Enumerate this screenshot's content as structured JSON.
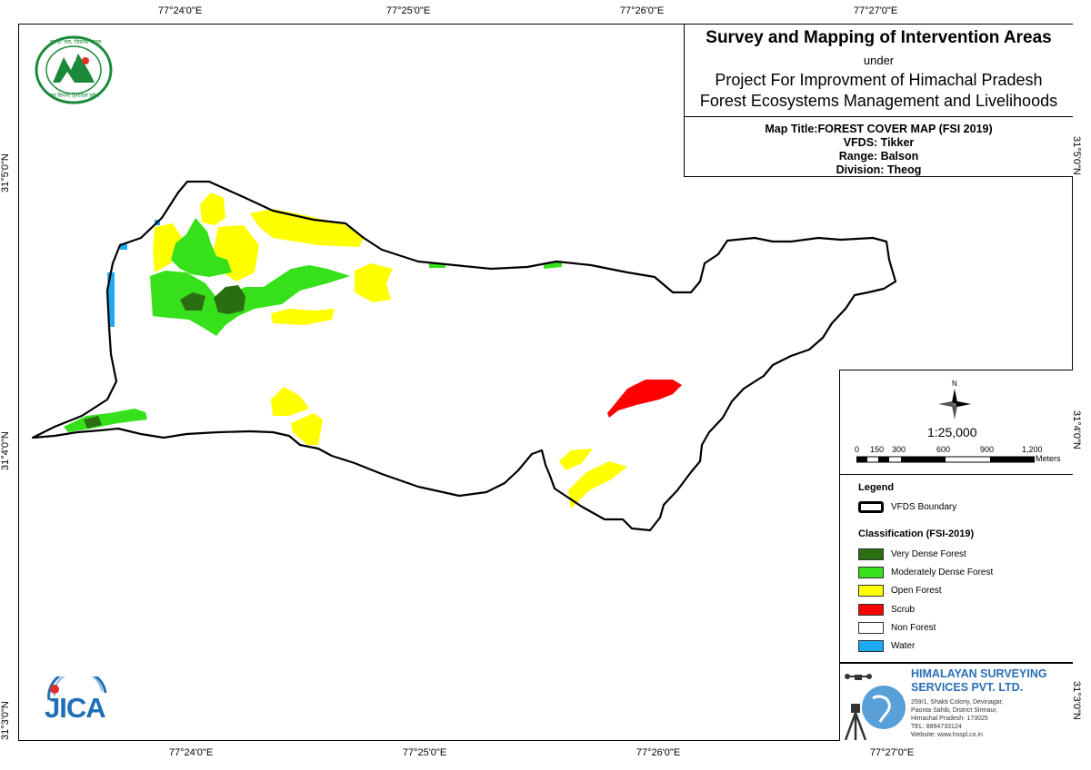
{
  "graticule": {
    "top_ticks": [
      "77°24'0\"E",
      "77°25'0\"E",
      "77°26'0\"E",
      "77°27'0\"E"
    ],
    "bottom_ticks": [
      "77°24'0\"E",
      "77°25'0\"E",
      "77°26'0\"E",
      "77°27'0\"E"
    ],
    "left_ticks": [
      "31°5'0\"N",
      "31°4'0\"N",
      "31°3'0\"N"
    ],
    "right_ticks": [
      "31°5'0\"N",
      "31°4'0\"N",
      "31°3'0\"N"
    ]
  },
  "title": {
    "main": "Survey and Mapping of Intervention Areas",
    "under": "under",
    "project_line1": "Project For Improvment of Himachal Pradesh",
    "project_line2": "Forest Ecosystems Management and Livelihoods"
  },
  "map_info": {
    "map_title": "Map Title:FOREST COVER MAP (FSI 2019)",
    "vfds": "VFDS: Tikker",
    "range": "Range: Balson",
    "division": "Division: Theog"
  },
  "scale": {
    "north_label": "N",
    "ratio": "1:25,000",
    "bar_labels": [
      "0",
      "150",
      "300",
      "600",
      "900",
      "1,200"
    ],
    "units": "Meters"
  },
  "legend": {
    "title": "Legend",
    "boundary_label": "VFDS Boundary",
    "classification_title": "Classification (FSI-2019)",
    "classes": [
      {
        "label": "Very Dense Forest",
        "color": "#2a6e12"
      },
      {
        "label": "Moderately Dense Forest",
        "color": "#36e01a"
      },
      {
        "label": "Open Forest",
        "color": "#ffff00"
      },
      {
        "label": "Scrub",
        "color": "#ff0000"
      },
      {
        "label": "Non Forest",
        "color": "#ffffff"
      },
      {
        "label": "Water",
        "color": "#1eaaf0"
      }
    ]
  },
  "company": {
    "name_line1": "HIMALAYAN SURVEYING",
    "name_line2": "SERVICES PVT. LTD.",
    "address1": "259/1, Shakti Colony, Devinagar,",
    "address2": "Paonta Sahib, District Sirmaur,",
    "address3": "Himachal Pradesh- 173025",
    "tel": "TEL: 8894733124",
    "website": "Website: www.hsspl.co.in"
  },
  "logos": {
    "jica_text": "JICA",
    "hp_logo_text_top": "वन ही जल, जिसका जंगल",
    "hp_logo_text_bottom": "वन विभाग हिमाचल प्रदेश"
  },
  "colors": {
    "very_dense": "#2a6e12",
    "moderately_dense": "#36e01a",
    "open": "#ffff00",
    "scrub": "#ff0000",
    "water": "#1eaaf0",
    "company_blue": "#2a6fb5",
    "jica_blue": "#1e6fb9",
    "jica_red": "#e0302a",
    "hp_green": "#1a8a3a"
  }
}
